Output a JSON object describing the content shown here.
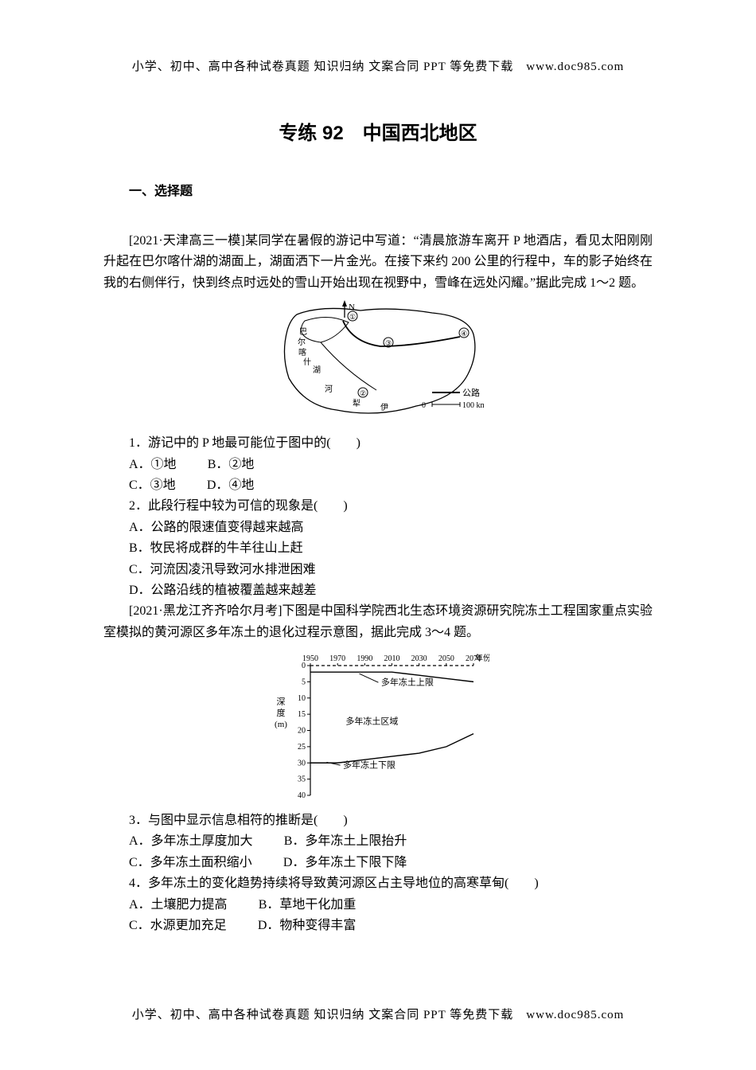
{
  "headerFooter": "小学、初中、高中各种试卷真题 知识归纳 文案合同 PPT 等免费下载　www.doc985.com",
  "title": "专练 92　中国西北地区",
  "sectionLabel": "一、选择题",
  "passage1": "[2021·天津高三一模]某同学在暑假的游记中写道：“清晨旅游车离开 P 地酒店，看见太阳刚刚升起在巴尔喀什湖的湖面上，湖面洒下一片金光。在接下来约 200 公里的行程中，车的影子始终在我的右侧伴行，快到终点时远处的雪山开始出现在视野中，雪峰在远处闪耀。”据此完成 1～2 题。",
  "q1": {
    "stem": "1．游记中的 P 地最可能位于图中的(　　)",
    "optA": "A．①地",
    "optB": "B．②地",
    "optC": "C．③地",
    "optD": "D．④地"
  },
  "q2": {
    "stem": "2．此段行程中较为可信的现象是(　　)",
    "optA": "A．公路的限速值变得越来越高",
    "optB": "B．牧民将成群的牛羊往山上赶",
    "optC": "C．河流因凌汛导致河水排泄困难",
    "optD": "D．公路沿线的植被覆盖越来越差"
  },
  "passage2": "[2021·黑龙江齐齐哈尔月考]下图是中国科学院西北生态环境资源研究院冻土工程国家重点实验室模拟的黄河源区多年冻土的退化过程示意图，据此完成 3～4 题。",
  "q3": {
    "stem": "3．与图中显示信息相符的推断是(　　)",
    "optA": "A．多年冻土厚度加大",
    "optB": "B．多年冻土上限抬升",
    "optC": "C．多年冻土面积缩小",
    "optD": "D．多年冻土下限下降"
  },
  "q4": {
    "stem": "4．多年冻土的变化趋势持续将导致黄河源区占主导地位的高寒草甸(　　)",
    "optA": "A．土壤肥力提高",
    "optB": "B．草地干化加重",
    "optC": "C．水源更加充足",
    "optD": "D．物种变得丰富"
  },
  "figure1": {
    "type": "map-sketch",
    "stroke": "#000000",
    "labels": {
      "north": "N",
      "lake": "巴\n尔\n喀\n什\n湖",
      "river": "伊",
      "river2": "犁",
      "river3": "河",
      "legend_road": "公路",
      "legend_scale": "100 km",
      "zero": "0",
      "m1": "①",
      "m2": "②",
      "m3": "③",
      "m4": "④"
    }
  },
  "figure2": {
    "type": "line",
    "xlabel_suffix": "年份",
    "x_ticks": [
      "1950",
      "1970",
      "1990",
      "2010",
      "2030",
      "2050",
      "2070"
    ],
    "y_ticks": [
      "0",
      "5",
      "10",
      "15",
      "20",
      "25",
      "30",
      "35",
      "40"
    ],
    "ylabel": "深度(m)",
    "region_label": "多年冻土区域",
    "upper_label": "多年冻土上限",
    "lower_label": "多年冻土下限",
    "upper_series": [
      2,
      2,
      2,
      2,
      3,
      4,
      5
    ],
    "lower_series": [
      30,
      30,
      29,
      28,
      27,
      25,
      21
    ],
    "text_color": "#000000",
    "line_color": "#000000",
    "axis_color": "#000000",
    "fontsize_tick": 10,
    "fontsize_label": 11
  }
}
